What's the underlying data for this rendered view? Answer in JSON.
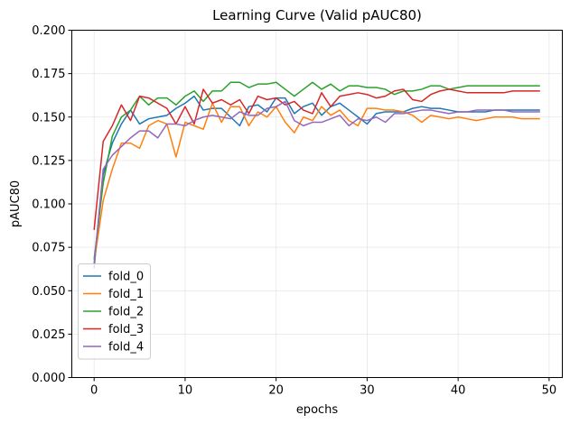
{
  "chart_data": {
    "type": "line",
    "title": "Learning Curve (Valid pAUC80)",
    "xlabel": "epochs",
    "ylabel": "pAUC80",
    "xlim": [
      -2.45,
      51.45
    ],
    "ylim": [
      0,
      0.2
    ],
    "xticks": [
      0,
      10,
      20,
      30,
      40,
      50
    ],
    "xtick_labels": [
      "0",
      "10",
      "20",
      "30",
      "40",
      "50"
    ],
    "yticks": [
      0,
      0.025,
      0.05,
      0.075,
      0.1,
      0.125,
      0.15,
      0.175,
      0.2
    ],
    "ytick_labels": [
      "0.000",
      "0.025",
      "0.050",
      "0.075",
      "0.100",
      "0.125",
      "0.150",
      "0.175",
      "0.200"
    ],
    "grid": true,
    "legend_position": "lower-left",
    "x": [
      0,
      1,
      2,
      3,
      4,
      5,
      6,
      7,
      8,
      9,
      10,
      11,
      12,
      13,
      14,
      15,
      16,
      17,
      18,
      19,
      20,
      21,
      22,
      23,
      24,
      25,
      26,
      27,
      28,
      29,
      30,
      31,
      32,
      33,
      34,
      35,
      36,
      37,
      38,
      39,
      40,
      41,
      42,
      43,
      44,
      45,
      46,
      47,
      48,
      49
    ],
    "series": [
      {
        "name": "fold_0",
        "color": "#1f77b4",
        "values": [
          0.063,
          0.117,
          0.135,
          0.146,
          0.154,
          0.146,
          0.149,
          0.15,
          0.151,
          0.155,
          0.158,
          0.162,
          0.154,
          0.155,
          0.155,
          0.15,
          0.145,
          0.156,
          0.157,
          0.153,
          0.161,
          0.161,
          0.152,
          0.156,
          0.158,
          0.151,
          0.156,
          0.158,
          0.154,
          0.15,
          0.146,
          0.152,
          0.153,
          0.153,
          0.153,
          0.155,
          0.156,
          0.155,
          0.155,
          0.154,
          0.153,
          0.153,
          0.153,
          0.153,
          0.154,
          0.154,
          0.154,
          0.154,
          0.154,
          0.154
        ]
      },
      {
        "name": "fold_1",
        "color": "#ff7f0e",
        "values": [
          0.066,
          0.102,
          0.12,
          0.135,
          0.135,
          0.132,
          0.145,
          0.148,
          0.146,
          0.127,
          0.147,
          0.145,
          0.143,
          0.158,
          0.147,
          0.156,
          0.156,
          0.145,
          0.153,
          0.15,
          0.156,
          0.147,
          0.141,
          0.15,
          0.148,
          0.156,
          0.151,
          0.154,
          0.148,
          0.145,
          0.155,
          0.155,
          0.154,
          0.154,
          0.153,
          0.151,
          0.147,
          0.151,
          0.15,
          0.149,
          0.15,
          0.149,
          0.148,
          0.149,
          0.15,
          0.15,
          0.15,
          0.149,
          0.149,
          0.149
        ]
      },
      {
        "name": "fold_2",
        "color": "#2ca02c",
        "values": [
          0.068,
          0.112,
          0.139,
          0.15,
          0.154,
          0.162,
          0.157,
          0.161,
          0.161,
          0.157,
          0.162,
          0.165,
          0.159,
          0.165,
          0.165,
          0.17,
          0.17,
          0.167,
          0.169,
          0.169,
          0.17,
          0.166,
          0.162,
          0.166,
          0.17,
          0.166,
          0.169,
          0.165,
          0.168,
          0.168,
          0.167,
          0.167,
          0.166,
          0.163,
          0.165,
          0.165,
          0.166,
          0.168,
          0.168,
          0.166,
          0.167,
          0.168,
          0.168,
          0.168,
          0.168,
          0.168,
          0.168,
          0.168,
          0.168,
          0.168
        ]
      },
      {
        "name": "fold_3",
        "color": "#d62728",
        "values": [
          0.085,
          0.136,
          0.145,
          0.157,
          0.148,
          0.162,
          0.161,
          0.158,
          0.155,
          0.146,
          0.156,
          0.146,
          0.166,
          0.158,
          0.16,
          0.157,
          0.16,
          0.152,
          0.162,
          0.16,
          0.161,
          0.157,
          0.159,
          0.154,
          0.152,
          0.164,
          0.156,
          0.162,
          0.163,
          0.164,
          0.163,
          0.161,
          0.162,
          0.165,
          0.166,
          0.16,
          0.159,
          0.163,
          0.165,
          0.166,
          0.165,
          0.164,
          0.164,
          0.164,
          0.164,
          0.164,
          0.165,
          0.165,
          0.165,
          0.165
        ]
      },
      {
        "name": "fold_4",
        "color": "#9467bd",
        "values": [
          0.065,
          0.12,
          0.128,
          0.133,
          0.138,
          0.142,
          0.142,
          0.138,
          0.146,
          0.146,
          0.145,
          0.148,
          0.15,
          0.151,
          0.15,
          0.149,
          0.153,
          0.151,
          0.151,
          0.155,
          0.156,
          0.159,
          0.148,
          0.145,
          0.147,
          0.147,
          0.149,
          0.151,
          0.145,
          0.149,
          0.148,
          0.15,
          0.147,
          0.152,
          0.152,
          0.153,
          0.154,
          0.154,
          0.153,
          0.152,
          0.153,
          0.153,
          0.154,
          0.154,
          0.154,
          0.154,
          0.153,
          0.153,
          0.153,
          0.153
        ]
      }
    ]
  }
}
